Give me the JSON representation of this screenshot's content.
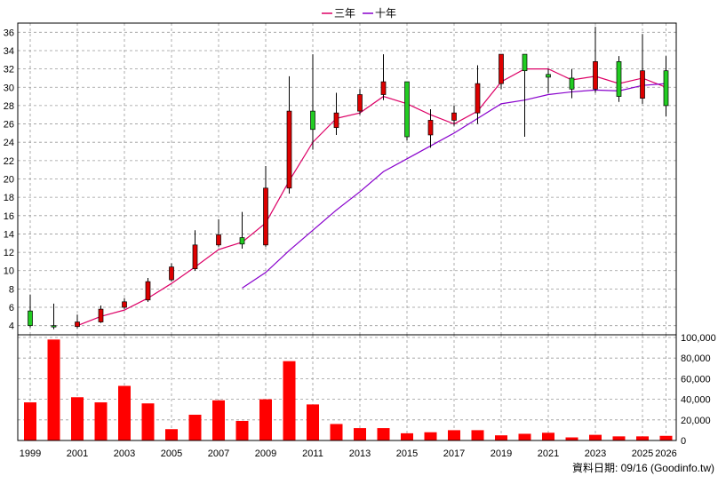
{
  "legend": {
    "three_year": "三年",
    "ten_year": "十年"
  },
  "credit": "資料日期: 09/16 (Goodinfo.tw)",
  "colors": {
    "up": "#dd0000",
    "down": "#22cc22",
    "ma3": "#dd0066",
    "ma10": "#8800cc",
    "volume": "#ff0000",
    "grid": "#999999"
  },
  "chart_data": {
    "type": "candlestick_with_volume",
    "price_axis": {
      "range": [
        3,
        37
      ],
      "ticks": [
        4,
        6,
        8,
        10,
        12,
        14,
        16,
        18,
        20,
        22,
        24,
        26,
        28,
        30,
        32,
        34,
        36
      ]
    },
    "volume_axis": {
      "range": [
        0,
        100000
      ],
      "ticks": [
        "0",
        "20,000",
        "40,000",
        "60,000",
        "80,000",
        "100,000"
      ],
      "tick_values": [
        0,
        20000,
        40000,
        60000,
        80000,
        100000
      ]
    },
    "x_ticks": [
      "1999",
      "2001",
      "2003",
      "2005",
      "2007",
      "2009",
      "2011",
      "2013",
      "2015",
      "2017",
      "2019",
      "2021",
      "2023",
      "2025",
      "2026"
    ],
    "candles": [
      {
        "year": 1999,
        "open": 5.6,
        "close": 4.0,
        "high": 7.4,
        "low": 3.8
      },
      {
        "year": 2000,
        "open": 4.0,
        "close": 3.9,
        "high": 6.4,
        "low": 3.6
      },
      {
        "year": 2001,
        "open": 3.9,
        "close": 4.4,
        "high": 5.2,
        "low": 3.7
      },
      {
        "year": 2002,
        "open": 4.4,
        "close": 5.8,
        "high": 6.2,
        "low": 4.3
      },
      {
        "year": 2003,
        "open": 6.0,
        "close": 6.6,
        "high": 7.0,
        "low": 5.8
      },
      {
        "year": 2004,
        "open": 6.8,
        "close": 8.8,
        "high": 9.2,
        "low": 6.6
      },
      {
        "year": 2005,
        "open": 9.0,
        "close": 10.4,
        "high": 10.8,
        "low": 8.8
      },
      {
        "year": 2006,
        "open": 10.2,
        "close": 12.8,
        "high": 14.4,
        "low": 10.0
      },
      {
        "year": 2007,
        "open": 12.8,
        "close": 13.9,
        "high": 15.6,
        "low": 12.6
      },
      {
        "year": 2008,
        "open": 13.6,
        "close": 12.9,
        "high": 16.4,
        "low": 12.4
      },
      {
        "year": 2009,
        "open": 12.8,
        "close": 19.0,
        "high": 21.4,
        "low": 12.6
      },
      {
        "year": 2010,
        "open": 19.0,
        "close": 27.4,
        "high": 31.2,
        "low": 18.4
      },
      {
        "year": 2011,
        "open": 27.4,
        "close": 25.4,
        "high": 33.6,
        "low": 23.2
      },
      {
        "year": 2012,
        "open": 25.6,
        "close": 27.2,
        "high": 29.4,
        "low": 24.8
      },
      {
        "year": 2013,
        "open": 27.4,
        "close": 29.2,
        "high": 29.8,
        "low": 27.0
      },
      {
        "year": 2014,
        "open": 29.2,
        "close": 30.6,
        "high": 33.6,
        "low": 28.6
      },
      {
        "year": 2015,
        "open": 30.6,
        "close": 24.6,
        "high": 30.6,
        "low": 24.2
      },
      {
        "year": 2016,
        "open": 24.8,
        "close": 26.4,
        "high": 27.6,
        "low": 23.4
      },
      {
        "year": 2017,
        "open": 26.4,
        "close": 27.2,
        "high": 28.0,
        "low": 25.8
      },
      {
        "year": 2018,
        "open": 27.2,
        "close": 30.4,
        "high": 32.4,
        "low": 26.0
      },
      {
        "year": 2019,
        "open": 30.4,
        "close": 33.6,
        "high": 33.6,
        "low": 29.8
      },
      {
        "year": 2020,
        "open": 33.6,
        "close": 31.8,
        "high": 33.6,
        "low": 24.6
      },
      {
        "year": 2021,
        "open": 31.4,
        "close": 31.1,
        "high": 32.0,
        "low": 29.4
      },
      {
        "year": 2022,
        "open": 31.0,
        "close": 29.8,
        "high": 32.0,
        "low": 28.8
      },
      {
        "year": 2023,
        "open": 29.8,
        "close": 32.8,
        "high": 36.6,
        "low": 29.4
      },
      {
        "year": 2024,
        "open": 32.8,
        "close": 29.0,
        "high": 33.4,
        "low": 28.4
      },
      {
        "year": 2025,
        "open": 28.8,
        "close": 31.8,
        "high": 35.8,
        "low": 28.2
      },
      {
        "year": 2026,
        "open": 31.8,
        "close": 28.0,
        "high": 33.4,
        "low": 26.8
      }
    ],
    "series": [
      {
        "name": "三年",
        "points": [
          [
            2001,
            4.0
          ],
          [
            2002,
            5.0
          ],
          [
            2003,
            5.7
          ],
          [
            2004,
            7.0
          ],
          [
            2005,
            8.6
          ],
          [
            2006,
            10.4
          ],
          [
            2007,
            12.3
          ],
          [
            2008,
            13.1
          ],
          [
            2009,
            15.2
          ],
          [
            2010,
            19.8
          ],
          [
            2011,
            24.0
          ],
          [
            2012,
            26.6
          ],
          [
            2013,
            27.2
          ],
          [
            2014,
            29.0
          ],
          [
            2015,
            28.2
          ],
          [
            2016,
            27.0
          ],
          [
            2017,
            26.0
          ],
          [
            2018,
            27.4
          ],
          [
            2019,
            30.6
          ],
          [
            2020,
            32.0
          ],
          [
            2021,
            32.0
          ],
          [
            2022,
            30.8
          ],
          [
            2023,
            31.2
          ],
          [
            2024,
            30.4
          ],
          [
            2025,
            31.0
          ],
          [
            2026,
            30.0
          ]
        ]
      },
      {
        "name": "十年",
        "points": [
          [
            2008,
            8.1
          ],
          [
            2009,
            9.8
          ],
          [
            2010,
            12.2
          ],
          [
            2011,
            14.4
          ],
          [
            2012,
            16.6
          ],
          [
            2013,
            18.6
          ],
          [
            2014,
            20.8
          ],
          [
            2015,
            22.2
          ],
          [
            2016,
            23.6
          ],
          [
            2017,
            25.0
          ],
          [
            2018,
            26.6
          ],
          [
            2019,
            28.2
          ],
          [
            2020,
            28.6
          ],
          [
            2021,
            29.2
          ],
          [
            2022,
            29.5
          ],
          [
            2023,
            29.7
          ],
          [
            2024,
            29.6
          ],
          [
            2025,
            30.2
          ],
          [
            2026,
            30.4
          ]
        ]
      }
    ],
    "volume": [
      {
        "year": 1999,
        "value": 37000
      },
      {
        "year": 2000,
        "value": 98000
      },
      {
        "year": 2001,
        "value": 42000
      },
      {
        "year": 2002,
        "value": 37000
      },
      {
        "year": 2003,
        "value": 53000
      },
      {
        "year": 2004,
        "value": 36000
      },
      {
        "year": 2005,
        "value": 11000
      },
      {
        "year": 2006,
        "value": 25000
      },
      {
        "year": 2007,
        "value": 39000
      },
      {
        "year": 2008,
        "value": 19000
      },
      {
        "year": 2009,
        "value": 40000
      },
      {
        "year": 2010,
        "value": 77000
      },
      {
        "year": 2011,
        "value": 35000
      },
      {
        "year": 2012,
        "value": 16000
      },
      {
        "year": 2013,
        "value": 12000
      },
      {
        "year": 2014,
        "value": 12000
      },
      {
        "year": 2015,
        "value": 7000
      },
      {
        "year": 2016,
        "value": 8000
      },
      {
        "year": 2017,
        "value": 10000
      },
      {
        "year": 2018,
        "value": 10000
      },
      {
        "year": 2019,
        "value": 5000
      },
      {
        "year": 2020,
        "value": 6500
      },
      {
        "year": 2021,
        "value": 7500
      },
      {
        "year": 2022,
        "value": 3000
      },
      {
        "year": 2023,
        "value": 5500
      },
      {
        "year": 2024,
        "value": 4000
      },
      {
        "year": 2025,
        "value": 4000
      },
      {
        "year": 2026,
        "value": 4500
      }
    ]
  }
}
